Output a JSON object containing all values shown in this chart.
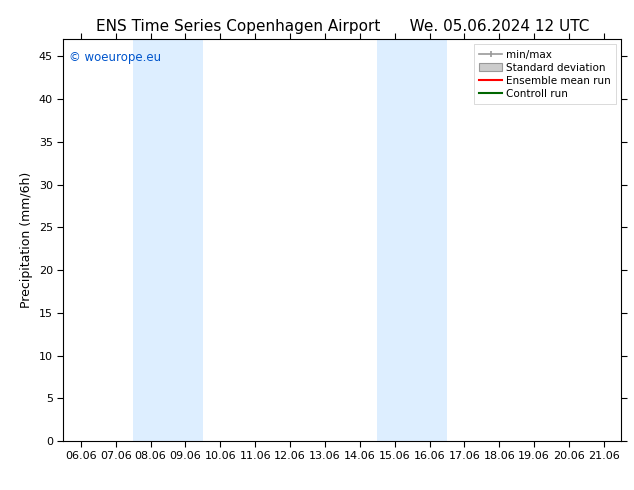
{
  "title_left": "ENS Time Series Copenhagen Airport",
  "title_right": "We. 05.06.2024 12 UTC",
  "ylabel": "Precipitation (mm/6h)",
  "ylim": [
    0,
    47
  ],
  "yticks": [
    0,
    5,
    10,
    15,
    20,
    25,
    30,
    35,
    40,
    45
  ],
  "xtick_labels": [
    "06.06",
    "07.06",
    "08.06",
    "09.06",
    "10.06",
    "11.06",
    "12.06",
    "13.06",
    "14.06",
    "15.06",
    "16.06",
    "17.06",
    "18.06",
    "19.06",
    "20.06",
    "21.06"
  ],
  "shaded_regions": [
    {
      "xstart": 2,
      "xend": 4,
      "color": "#ddeeff"
    },
    {
      "xstart": 9,
      "xend": 11,
      "color": "#ddeeff"
    }
  ],
  "bg_color": "#ffffff",
  "plot_bg_color": "#ffffff",
  "watermark_text": "© woeurope.eu",
  "watermark_color": "#0055cc",
  "legend_entries": [
    {
      "label": "min/max"
    },
    {
      "label": "Standard deviation"
    },
    {
      "label": "Ensemble mean run"
    },
    {
      "label": "Controll run"
    }
  ],
  "title_fontsize": 11,
  "tick_label_fontsize": 8,
  "ylabel_fontsize": 9,
  "legend_fontsize": 7.5
}
